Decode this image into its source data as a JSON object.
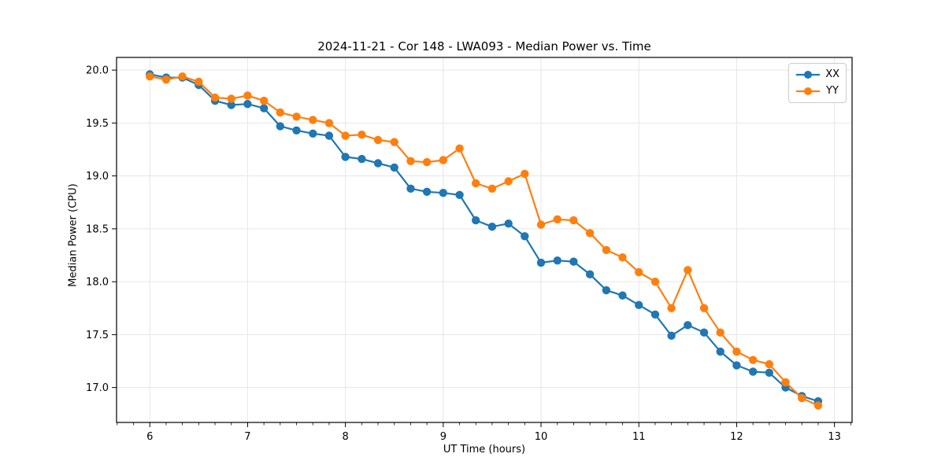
{
  "figure": {
    "title": "2024-11-21 - Cor 148 - LWA093 - Median Power vs. Time",
    "xlabel": "UT Time (hours)",
    "ylabel": "Median Power (CPU)"
  },
  "legend": {
    "items": [
      {
        "label": "XX",
        "color": "#1f77b4"
      },
      {
        "label": "YY",
        "color": "#ff7f0e"
      }
    ]
  },
  "chart_data": {
    "type": "line",
    "title": "2024-11-21 - Cor 148 - LWA093 - Median Power vs. Time",
    "xlabel": "UT Time (hours)",
    "ylabel": "Median Power (CPU)",
    "grid": true,
    "legend_position": "upper right",
    "marker": "circle",
    "x": [
      6.0,
      6.167,
      6.333,
      6.5,
      6.667,
      6.833,
      7.0,
      7.167,
      7.333,
      7.5,
      7.667,
      7.833,
      8.0,
      8.167,
      8.333,
      8.5,
      8.667,
      8.833,
      9.0,
      9.167,
      9.333,
      9.5,
      9.667,
      9.833,
      10.0,
      10.167,
      10.333,
      10.5,
      10.667,
      10.833,
      11.0,
      11.167,
      11.333,
      11.5,
      11.667,
      11.833,
      12.0,
      12.167,
      12.333,
      12.5,
      12.667,
      12.833
    ],
    "series": [
      {
        "name": "XX",
        "color": "#1f77b4",
        "values": [
          19.96,
          19.93,
          19.93,
          19.86,
          19.71,
          19.67,
          19.68,
          19.64,
          19.47,
          19.43,
          19.4,
          19.38,
          19.18,
          19.16,
          19.12,
          19.08,
          18.88,
          18.85,
          18.84,
          18.82,
          18.58,
          18.52,
          18.55,
          18.43,
          18.18,
          18.2,
          18.19,
          18.07,
          17.92,
          17.87,
          17.78,
          17.69,
          17.49,
          17.59,
          17.52,
          17.34,
          17.21,
          17.15,
          17.14,
          17.0,
          16.92,
          16.87
        ]
      },
      {
        "name": "YY",
        "color": "#ff7f0e",
        "values": [
          19.94,
          19.91,
          19.94,
          19.89,
          19.74,
          19.73,
          19.76,
          19.71,
          19.6,
          19.56,
          19.53,
          19.5,
          19.38,
          19.39,
          19.34,
          19.32,
          19.14,
          19.13,
          19.15,
          19.26,
          18.93,
          18.88,
          18.95,
          19.02,
          18.54,
          18.59,
          18.58,
          18.46,
          18.3,
          18.23,
          18.09,
          18.0,
          17.75,
          18.11,
          17.75,
          17.52,
          17.34,
          17.26,
          17.22,
          17.05,
          16.9,
          16.83
        ]
      }
    ],
    "xticks": [
      6,
      7,
      8,
      9,
      10,
      11,
      12,
      13
    ],
    "yticks": [
      17.0,
      17.5,
      18.0,
      18.5,
      19.0,
      19.5,
      20.0
    ],
    "xlim": [
      5.66,
      13.18
    ],
    "ylim": [
      16.67,
      20.12
    ]
  },
  "style": {
    "grid_color": "#e6e6e6",
    "spine_color": "#000000",
    "background": "#ffffff"
  }
}
